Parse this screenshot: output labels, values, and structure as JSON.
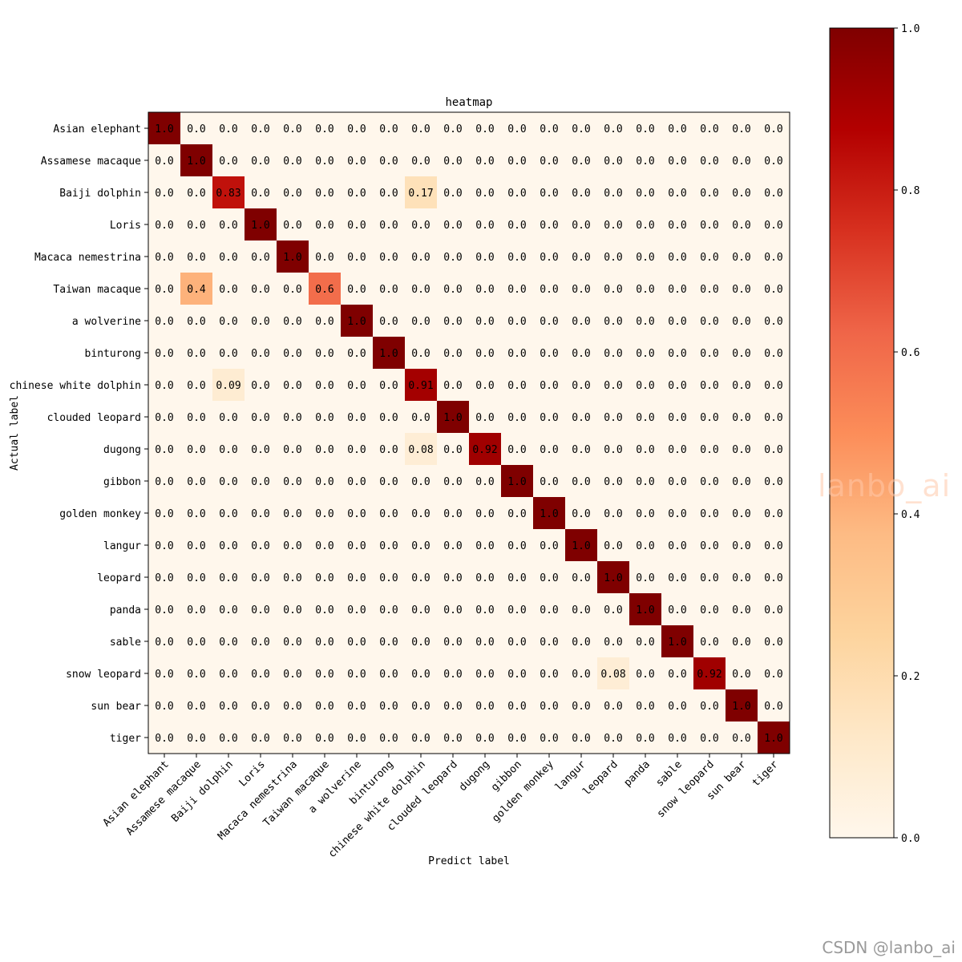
{
  "chart_data": {
    "type": "heatmap",
    "title": "heatmap",
    "xlabel": "Predict label",
    "ylabel": "Actual label",
    "labels": [
      "Asian elephant",
      "Assamese macaque",
      "Baiji dolphin",
      "Loris",
      "Macaca nemestrina",
      "Taiwan macaque",
      "a wolverine",
      "binturong",
      "chinese white dolphin",
      "clouded leopard",
      "dugong",
      "gibbon",
      "golden monkey",
      "langur",
      "leopard",
      "panda",
      "sable",
      "snow leopard",
      "sun bear",
      "tiger"
    ],
    "matrix": [
      [
        1.0,
        0,
        0,
        0,
        0,
        0,
        0,
        0,
        0,
        0,
        0,
        0,
        0,
        0,
        0,
        0,
        0,
        0,
        0,
        0
      ],
      [
        0,
        1.0,
        0,
        0,
        0,
        0,
        0,
        0,
        0,
        0,
        0,
        0,
        0,
        0,
        0,
        0,
        0,
        0,
        0,
        0
      ],
      [
        0,
        0,
        0.83,
        0,
        0,
        0,
        0,
        0,
        0.17,
        0,
        0,
        0,
        0,
        0,
        0,
        0,
        0,
        0,
        0,
        0
      ],
      [
        0,
        0,
        0,
        1.0,
        0,
        0,
        0,
        0,
        0,
        0,
        0,
        0,
        0,
        0,
        0,
        0,
        0,
        0,
        0,
        0
      ],
      [
        0,
        0,
        0,
        0,
        1.0,
        0,
        0,
        0,
        0,
        0,
        0,
        0,
        0,
        0,
        0,
        0,
        0,
        0,
        0,
        0
      ],
      [
        0,
        0.4,
        0,
        0,
        0,
        0.6,
        0,
        0,
        0,
        0,
        0,
        0,
        0,
        0,
        0,
        0,
        0,
        0,
        0,
        0
      ],
      [
        0,
        0,
        0,
        0,
        0,
        0,
        1.0,
        0,
        0,
        0,
        0,
        0,
        0,
        0,
        0,
        0,
        0,
        0,
        0,
        0
      ],
      [
        0,
        0,
        0,
        0,
        0,
        0,
        0,
        1.0,
        0,
        0,
        0,
        0,
        0,
        0,
        0,
        0,
        0,
        0,
        0,
        0
      ],
      [
        0,
        0,
        0.09,
        0,
        0,
        0,
        0,
        0,
        0.91,
        0,
        0,
        0,
        0,
        0,
        0,
        0,
        0,
        0,
        0,
        0
      ],
      [
        0,
        0,
        0,
        0,
        0,
        0,
        0,
        0,
        0,
        1.0,
        0,
        0,
        0,
        0,
        0,
        0,
        0,
        0,
        0,
        0
      ],
      [
        0,
        0,
        0,
        0,
        0,
        0,
        0,
        0,
        0.08,
        0,
        0.92,
        0,
        0,
        0,
        0,
        0,
        0,
        0,
        0,
        0
      ],
      [
        0,
        0,
        0,
        0,
        0,
        0,
        0,
        0,
        0,
        0,
        0,
        1.0,
        0,
        0,
        0,
        0,
        0,
        0,
        0,
        0
      ],
      [
        0,
        0,
        0,
        0,
        0,
        0,
        0,
        0,
        0,
        0,
        0,
        0,
        1.0,
        0,
        0,
        0,
        0,
        0,
        0,
        0
      ],
      [
        0,
        0,
        0,
        0,
        0,
        0,
        0,
        0,
        0,
        0,
        0,
        0,
        0,
        1.0,
        0,
        0,
        0,
        0,
        0,
        0
      ],
      [
        0,
        0,
        0,
        0,
        0,
        0,
        0,
        0,
        0,
        0,
        0,
        0,
        0,
        0,
        1.0,
        0,
        0,
        0,
        0,
        0
      ],
      [
        0,
        0,
        0,
        0,
        0,
        0,
        0,
        0,
        0,
        0,
        0,
        0,
        0,
        0,
        0,
        1.0,
        0,
        0,
        0,
        0
      ],
      [
        0,
        0,
        0,
        0,
        0,
        0,
        0,
        0,
        0,
        0,
        0,
        0,
        0,
        0,
        0,
        0,
        1.0,
        0,
        0,
        0
      ],
      [
        0,
        0,
        0,
        0,
        0,
        0,
        0,
        0,
        0,
        0,
        0,
        0,
        0,
        0,
        0.08,
        0,
        0,
        0.92,
        0,
        0
      ],
      [
        0,
        0,
        0,
        0,
        0,
        0,
        0,
        0,
        0,
        0,
        0,
        0,
        0,
        0,
        0,
        0,
        0,
        0,
        1.0,
        0
      ],
      [
        0,
        0,
        0,
        0,
        0,
        0,
        0,
        0,
        0,
        0,
        0,
        0,
        0,
        0,
        0,
        0,
        0,
        0,
        0,
        1.0
      ]
    ],
    "colorbar": {
      "range": [
        0.0,
        1.0
      ],
      "ticks": [
        "0.0",
        "0.2",
        "0.4",
        "0.6",
        "0.8",
        "1.0"
      ],
      "colormap_stops": [
        {
          "v": 0.0,
          "color": "#fff7ec"
        },
        {
          "v": 0.125,
          "color": "#fee8c8"
        },
        {
          "v": 0.25,
          "color": "#fdd49e"
        },
        {
          "v": 0.375,
          "color": "#fdbb84"
        },
        {
          "v": 0.5,
          "color": "#fc8d59"
        },
        {
          "v": 0.625,
          "color": "#ef6548"
        },
        {
          "v": 0.75,
          "color": "#d7301f"
        },
        {
          "v": 0.875,
          "color": "#b30000"
        },
        {
          "v": 1.0,
          "color": "#7f0000"
        }
      ]
    }
  },
  "watermark": {
    "chart_mark": "lanbo_ai",
    "footer": "CSDN @lanbo_ai"
  }
}
